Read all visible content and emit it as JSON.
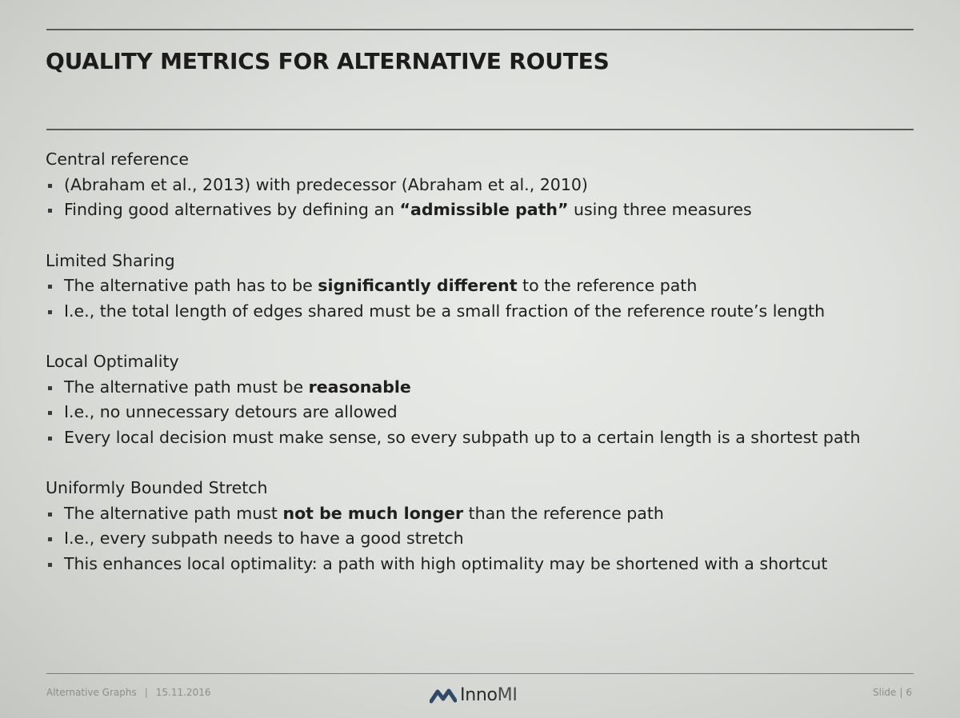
{
  "slide": {
    "title": "QUALITY METRICS FOR ALTERNATIVE ROUTES",
    "sections": [
      {
        "heading": "Central reference",
        "bullets": [
          [
            {
              "t": "(Abraham et al., 2013) with predecessor (Abraham et al., 2010)"
            }
          ],
          [
            {
              "t": "Finding good alternatives by defining an "
            },
            {
              "t": "“admissible path”",
              "b": true
            },
            {
              "t": " using three measures"
            }
          ]
        ]
      },
      {
        "heading": "Limited Sharing",
        "bullets": [
          [
            {
              "t": "The alternative path has to be "
            },
            {
              "t": "significantly different",
              "b": true
            },
            {
              "t": " to the reference path"
            }
          ],
          [
            {
              "t": "I.e., the total length of edges shared must be a small fraction of the reference route’s length"
            }
          ]
        ]
      },
      {
        "heading": "Local Optimality",
        "bullets": [
          [
            {
              "t": "The alternative path must be "
            },
            {
              "t": "reasonable",
              "b": true
            }
          ],
          [
            {
              "t": "I.e., no unnecessary detours are allowed"
            }
          ],
          [
            {
              "t": "Every local decision must make sense, so every subpath up to a certain length is a shortest path"
            }
          ]
        ]
      },
      {
        "heading": "Uniformly Bounded Stretch",
        "bullets": [
          [
            {
              "t": "The alternative path must "
            },
            {
              "t": "not be much longer",
              "b": true
            },
            {
              "t": " than the reference path"
            }
          ],
          [
            {
              "t": "I.e., every subpath needs to have a good stretch"
            }
          ],
          [
            {
              "t": "This enhances local optimality: a path with high optimality may be shortened with a shortcut"
            }
          ]
        ]
      }
    ]
  },
  "footer": {
    "presentation": "Alternative Graphs",
    "separator": "|",
    "date": "15.11.2016",
    "logo_text_main": "Inno",
    "logo_text_accent": "MI",
    "slide_label": "Slide",
    "slide_separator": "|",
    "slide_number": "6"
  },
  "colors": {
    "text": "#1f1f1f",
    "rule": "#5a5b58",
    "footer_text": "#8d8e8b",
    "logo_mark": "#2f4a66"
  },
  "icons": {
    "logo": "innomi-logo-mark"
  }
}
